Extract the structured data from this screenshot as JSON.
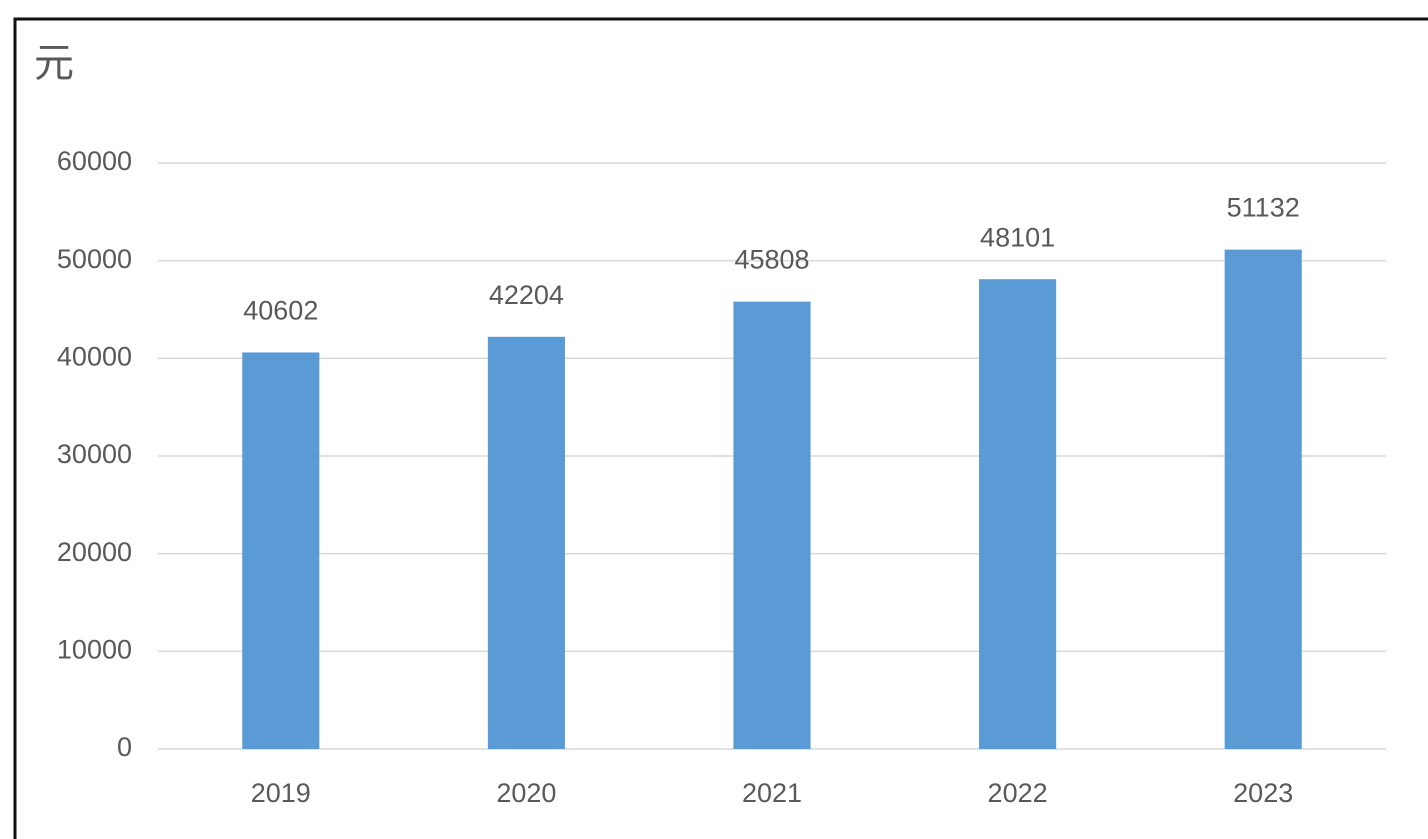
{
  "chart_data": {
    "type": "bar",
    "y_label": "元",
    "categories": [
      "2019",
      "2020",
      "2021",
      "2022",
      "2023"
    ],
    "values": [
      40602,
      42204,
      45808,
      48101,
      51132
    ],
    "color": "#5b9bd5",
    "ylim": [
      0,
      60000
    ],
    "yticks": [
      0,
      10000,
      20000,
      30000,
      40000,
      50000,
      60000
    ],
    "grid": true,
    "data_labels": true
  }
}
